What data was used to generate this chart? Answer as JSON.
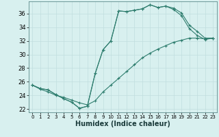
{
  "xlabel": "Humidex (Indice chaleur)",
  "bg_color": "#d8f0ef",
  "grid_color": "#c0dede",
  "line_color": "#2e7d6e",
  "xlim": [
    -0.5,
    23.5
  ],
  "ylim": [
    21.5,
    37.8
  ],
  "xticks": [
    0,
    1,
    2,
    3,
    4,
    5,
    6,
    7,
    8,
    9,
    10,
    11,
    12,
    13,
    14,
    15,
    16,
    17,
    18,
    19,
    20,
    21,
    22,
    23
  ],
  "yticks": [
    22,
    24,
    26,
    28,
    30,
    32,
    34,
    36
  ],
  "line1": {
    "x": [
      0,
      1,
      2,
      3,
      4,
      5,
      6,
      7,
      8,
      9,
      10,
      11,
      12,
      13,
      14,
      15,
      16,
      17,
      18,
      19,
      20,
      21,
      22,
      23
    ],
    "y": [
      25.5,
      25.0,
      24.8,
      24.1,
      23.5,
      23.0,
      22.1,
      22.4,
      27.2,
      30.7,
      32.0,
      36.4,
      36.3,
      36.5,
      36.7,
      37.3,
      36.9,
      37.1,
      36.8,
      36.1,
      34.3,
      33.4,
      32.4,
      32.4
    ]
  },
  "line2": {
    "x": [
      0,
      1,
      2,
      3,
      4,
      5,
      6,
      7,
      8,
      9,
      10,
      11,
      12,
      13,
      14,
      15,
      16,
      17,
      18,
      19,
      20,
      21,
      22,
      23
    ],
    "y": [
      25.5,
      25.0,
      24.8,
      24.1,
      23.5,
      23.0,
      22.1,
      22.4,
      27.2,
      30.7,
      32.0,
      36.4,
      36.3,
      36.5,
      36.7,
      37.3,
      36.9,
      37.1,
      36.6,
      35.7,
      33.8,
      32.8,
      32.2,
      32.4
    ]
  },
  "line3": {
    "x": [
      0,
      1,
      2,
      3,
      4,
      5,
      6,
      7,
      8,
      9,
      10,
      11,
      12,
      13,
      14,
      15,
      16,
      17,
      18,
      19,
      20,
      21,
      22,
      23
    ],
    "y": [
      25.5,
      24.9,
      24.5,
      24.0,
      23.7,
      23.3,
      22.9,
      22.6,
      23.2,
      24.5,
      25.5,
      26.5,
      27.5,
      28.5,
      29.5,
      30.2,
      30.8,
      31.3,
      31.8,
      32.1,
      32.4,
      32.4,
      32.3,
      32.4
    ]
  },
  "line4": {
    "x": [
      0,
      1,
      2,
      3,
      4,
      5,
      6,
      7,
      8,
      9,
      10,
      11,
      12,
      13,
      14,
      15,
      16,
      17,
      18,
      19,
      20,
      21,
      22,
      23
    ],
    "y": [
      25.5,
      25.0,
      24.8,
      24.1,
      23.5,
      23.0,
      22.1,
      22.4,
      27.2,
      30.7,
      31.5,
      36.0,
      36.0,
      36.2,
      36.5,
      37.0,
      36.6,
      36.7,
      36.6,
      35.9,
      35.6,
      35.0,
      32.8,
      32.4
    ]
  }
}
